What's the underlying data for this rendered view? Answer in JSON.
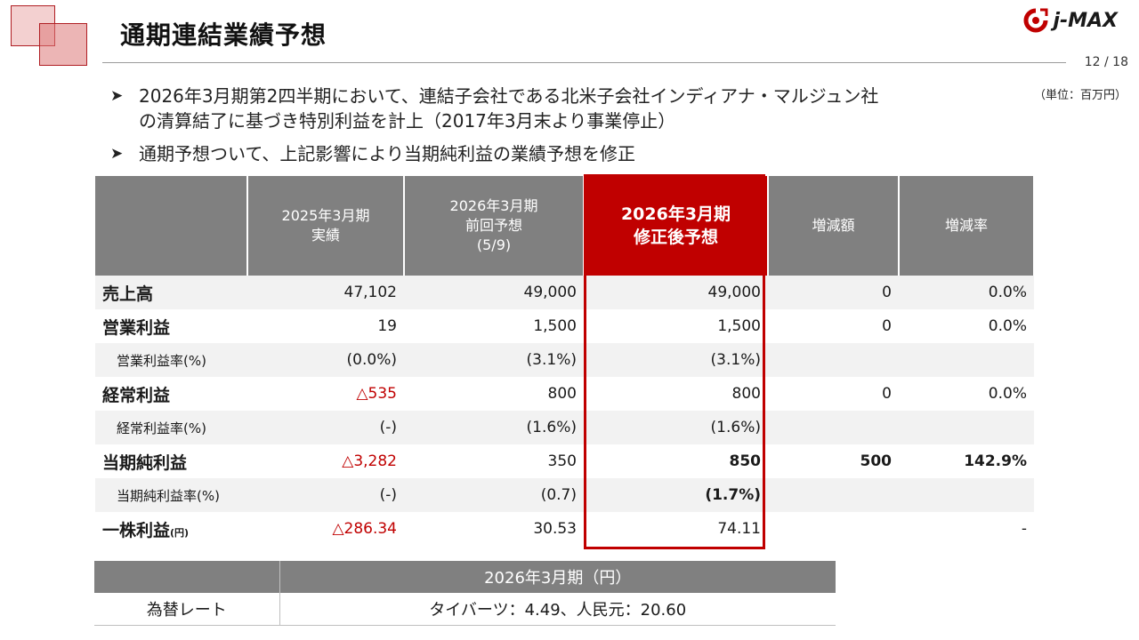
{
  "header": {
    "title": "通期連結業績予想",
    "brand": "j-MAX",
    "page": "12 / 18"
  },
  "bullets": [
    {
      "mark": "➤",
      "lines": [
        "2026年3月期第2四半期において、連結子会社である北米子会社インディアナ・マルジュン社",
        "の清算結了に基づき特別利益を計上（2017年3月末より事業停止）"
      ]
    },
    {
      "mark": "➤",
      "lines": [
        "通期予想ついて、上記影響により当期純利益の業績予想を修正"
      ]
    }
  ],
  "unit_note": "（単位：百万円）",
  "table": {
    "headers": [
      {
        "lines": [
          "2025年3月期",
          "実績"
        ]
      },
      {
        "lines": [
          "2026年3月期",
          "前回予想",
          "(5/9)"
        ]
      },
      {
        "lines": [
          "2026年3月期",
          "修正後予想"
        ]
      },
      {
        "lines": [
          "増減額"
        ]
      },
      {
        "lines": [
          "増減率"
        ]
      }
    ],
    "rows": [
      {
        "label": "売上高",
        "suffix": "",
        "values": [
          "47,102",
          "49,000",
          "49,000",
          "0",
          "0.0%"
        ]
      },
      {
        "label": "営業利益",
        "suffix": "",
        "values": [
          "19",
          "1,500",
          "1,500",
          "0",
          "0.0%"
        ]
      },
      {
        "label": "営業利益率(%)",
        "suffix": "",
        "values": [
          "(0.0%)",
          "(3.1%)",
          "(3.1%)",
          "",
          ""
        ]
      },
      {
        "label": "経常利益",
        "suffix": "",
        "values": [
          "△535",
          "800",
          "800",
          "0",
          "0.0%"
        ]
      },
      {
        "label": "経常利益率(%)",
        "suffix": "",
        "values": [
          "(-)",
          "(1.6%)",
          "(1.6%)",
          "",
          ""
        ]
      },
      {
        "label": "当期純利益",
        "suffix": "",
        "values": [
          "△3,282",
          "350",
          "850",
          "500",
          "142.9%"
        ]
      },
      {
        "label": "当期純利益率(%)",
        "suffix": "",
        "values": [
          "(-)",
          "(0.7)",
          "(1.7%)",
          "",
          ""
        ]
      },
      {
        "label": "一株利益",
        "suffix": "(円)",
        "values": [
          "△286.34",
          "30.53",
          "74.11",
          "",
          "-"
        ]
      }
    ]
  },
  "fx": {
    "header": "2026年3月期（円）",
    "label": "為替レート",
    "value": "タイバーツ：4.49、人民元：20.60"
  },
  "colors": {
    "accent": "#c00000",
    "header_gray": "#808080",
    "shade": "#f2f2f2"
  }
}
